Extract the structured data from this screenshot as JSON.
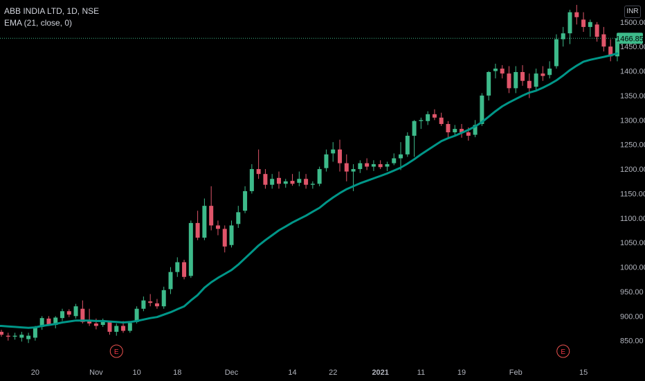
{
  "header": {
    "symbol_line": "ABB INDIA LTD, 1D, NSE",
    "indicator_line": "EMA (21, close, 0)",
    "currency": "INR"
  },
  "colors": {
    "background": "#000000",
    "up": "#26a69a",
    "up_body": "#3dba8a",
    "down": "#ef5350",
    "down_body": "#e0556a",
    "ema": "#009688",
    "axis_text": "#b2b5be",
    "price_line": "#3dba8a"
  },
  "chart_data": {
    "type": "candlestick",
    "title": "ABB INDIA LTD, 1D, NSE",
    "ylim": [
      810,
      1545
    ],
    "y_ticks": [
      850,
      900,
      950,
      1000,
      1050,
      1100,
      1150,
      1200,
      1250,
      1300,
      1350,
      1400,
      1450,
      1500
    ],
    "y_tick_labels": [
      "850.00",
      "900.00",
      "950.00",
      "1000.00",
      "1050.00",
      "1100.00",
      "1150.00",
      "1200.00",
      "1250.00",
      "1300.00",
      "1350.00",
      "1400.00",
      "1450.00",
      "1500.00"
    ],
    "x_tick_labels": [
      {
        "label": "20",
        "bar": 5
      },
      {
        "label": "Nov",
        "bar": 14
      },
      {
        "label": "10",
        "bar": 20
      },
      {
        "label": "18",
        "bar": 26
      },
      {
        "label": "Dec",
        "bar": 34
      },
      {
        "label": "14",
        "bar": 43
      },
      {
        "label": "22",
        "bar": 49
      },
      {
        "label": "2021",
        "bar": 56,
        "bold": true
      },
      {
        "label": "11",
        "bar": 62
      },
      {
        "label": "19",
        "bar": 68
      },
      {
        "label": "Feb",
        "bar": 76
      },
      {
        "label": "15",
        "bar": 86
      }
    ],
    "last_price": 1466.85,
    "last_price_label": "1466.85",
    "events": [
      {
        "label": "E",
        "bar": 17
      },
      {
        "label": "E",
        "bar": 83
      }
    ],
    "candles": [
      [
        868,
        872,
        858,
        862
      ],
      [
        860,
        866,
        850,
        858
      ],
      [
        858,
        866,
        852,
        860
      ],
      [
        856,
        868,
        848,
        862
      ],
      [
        853,
        866,
        845,
        860
      ],
      [
        856,
        880,
        850,
        876
      ],
      [
        878,
        900,
        872,
        896
      ],
      [
        895,
        900,
        880,
        883
      ],
      [
        882,
        900,
        875,
        897
      ],
      [
        896,
        915,
        890,
        910
      ],
      [
        910,
        914,
        898,
        903
      ],
      [
        900,
        925,
        895,
        920
      ],
      [
        915,
        932,
        885,
        888
      ],
      [
        890,
        915,
        880,
        885
      ],
      [
        885,
        895,
        873,
        880
      ],
      [
        882,
        895,
        878,
        888
      ],
      [
        888,
        890,
        862,
        868
      ],
      [
        868,
        885,
        860,
        880
      ],
      [
        880,
        890,
        866,
        870
      ],
      [
        870,
        890,
        866,
        886
      ],
      [
        888,
        920,
        885,
        915
      ],
      [
        915,
        940,
        910,
        932
      ],
      [
        930,
        945,
        920,
        927
      ],
      [
        926,
        935,
        915,
        920
      ],
      [
        920,
        960,
        915,
        953
      ],
      [
        955,
        1000,
        945,
        990
      ],
      [
        990,
        1020,
        980,
        1010
      ],
      [
        1010,
        1015,
        975,
        980
      ],
      [
        982,
        1095,
        978,
        1090
      ],
      [
        1090,
        1115,
        1055,
        1060
      ],
      [
        1060,
        1140,
        1055,
        1125
      ],
      [
        1125,
        1165,
        1075,
        1085
      ],
      [
        1085,
        1095,
        1065,
        1078
      ],
      [
        1078,
        1085,
        1030,
        1042
      ],
      [
        1045,
        1095,
        1040,
        1085
      ],
      [
        1088,
        1125,
        1080,
        1112
      ],
      [
        1115,
        1165,
        1110,
        1155
      ],
      [
        1155,
        1210,
        1150,
        1200
      ],
      [
        1200,
        1240,
        1180,
        1190
      ],
      [
        1190,
        1200,
        1160,
        1168
      ],
      [
        1168,
        1190,
        1160,
        1180
      ],
      [
        1182,
        1195,
        1160,
        1170
      ],
      [
        1170,
        1180,
        1162,
        1175
      ],
      [
        1176,
        1190,
        1166,
        1170
      ],
      [
        1172,
        1195,
        1165,
        1180
      ],
      [
        1180,
        1190,
        1160,
        1168
      ],
      [
        1168,
        1175,
        1160,
        1170
      ],
      [
        1170,
        1205,
        1165,
        1200
      ],
      [
        1202,
        1240,
        1195,
        1230
      ],
      [
        1232,
        1255,
        1215,
        1240
      ],
      [
        1240,
        1260,
        1195,
        1212
      ],
      [
        1212,
        1230,
        1175,
        1195
      ],
      [
        1195,
        1210,
        1155,
        1200
      ],
      [
        1200,
        1218,
        1192,
        1212
      ],
      [
        1212,
        1222,
        1198,
        1205
      ],
      [
        1205,
        1218,
        1196,
        1210
      ],
      [
        1210,
        1218,
        1200,
        1204
      ],
      [
        1205,
        1215,
        1196,
        1210
      ],
      [
        1212,
        1232,
        1208,
        1222
      ],
      [
        1222,
        1255,
        1198,
        1230
      ],
      [
        1230,
        1275,
        1225,
        1268
      ],
      [
        1268,
        1300,
        1225,
        1298
      ],
      [
        1298,
        1305,
        1282,
        1300
      ],
      [
        1298,
        1318,
        1290,
        1312
      ],
      [
        1312,
        1322,
        1300,
        1305
      ],
      [
        1305,
        1315,
        1288,
        1292
      ],
      [
        1292,
        1298,
        1265,
        1275
      ],
      [
        1275,
        1290,
        1266,
        1282
      ],
      [
        1282,
        1292,
        1264,
        1275
      ],
      [
        1275,
        1285,
        1258,
        1268
      ],
      [
        1270,
        1300,
        1265,
        1290
      ],
      [
        1292,
        1355,
        1288,
        1350
      ],
      [
        1350,
        1400,
        1340,
        1398
      ],
      [
        1400,
        1415,
        1385,
        1405
      ],
      [
        1405,
        1412,
        1385,
        1395
      ],
      [
        1395,
        1410,
        1355,
        1365
      ],
      [
        1365,
        1410,
        1355,
        1398
      ],
      [
        1398,
        1412,
        1370,
        1380
      ],
      [
        1380,
        1395,
        1345,
        1365
      ],
      [
        1368,
        1405,
        1362,
        1395
      ],
      [
        1395,
        1410,
        1380,
        1390
      ],
      [
        1392,
        1420,
        1385,
        1405
      ],
      [
        1410,
        1475,
        1405,
        1465
      ],
      [
        1465,
        1490,
        1450,
        1477
      ],
      [
        1477,
        1525,
        1455,
        1520
      ],
      [
        1520,
        1535,
        1495,
        1510
      ],
      [
        1505,
        1520,
        1480,
        1490
      ],
      [
        1490,
        1505,
        1470,
        1500
      ],
      [
        1495,
        1500,
        1460,
        1470
      ],
      [
        1475,
        1490,
        1440,
        1450
      ],
      [
        1450,
        1465,
        1420,
        1430
      ],
      [
        1430,
        1475,
        1420,
        1466.85
      ]
    ],
    "ema": [
      880,
      879,
      878,
      877,
      876,
      877,
      880,
      882,
      884,
      887,
      889,
      891,
      891,
      891,
      890,
      890,
      889,
      888,
      887,
      888,
      890,
      893,
      896,
      898,
      903,
      908,
      914,
      920,
      932,
      943,
      958,
      969,
      978,
      986,
      994,
      1005,
      1018,
      1031,
      1044,
      1055,
      1065,
      1075,
      1083,
      1091,
      1098,
      1105,
      1113,
      1121,
      1132,
      1142,
      1151,
      1159,
      1165,
      1171,
      1176,
      1181,
      1186,
      1191,
      1197,
      1203,
      1211,
      1220,
      1230,
      1239,
      1248,
      1257,
      1263,
      1268,
      1274,
      1280,
      1287,
      1296,
      1307,
      1318,
      1328,
      1336,
      1343,
      1350,
      1356,
      1360,
      1366,
      1373,
      1381,
      1391,
      1402,
      1411,
      1419,
      1423,
      1426,
      1429,
      1432,
      1436
    ]
  }
}
